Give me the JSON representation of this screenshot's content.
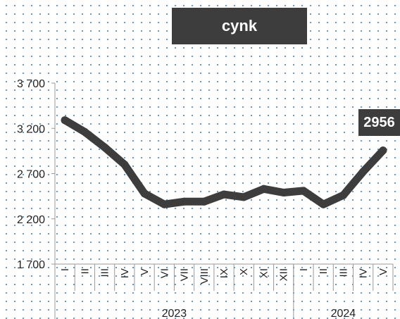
{
  "chart_data": {
    "type": "line",
    "title": "cynk",
    "x": [
      "I",
      "II",
      "III",
      "IV",
      "V",
      "VI",
      "VII",
      "VIII",
      "IX",
      "X",
      "XI",
      "XII",
      "I",
      "II",
      "III",
      "IV",
      "V"
    ],
    "groups": [
      {
        "label": "2023",
        "start": 0,
        "count": 12
      },
      {
        "label": "2024",
        "start": 12,
        "count": 5
      }
    ],
    "series": [
      {
        "values": [
          3290,
          3160,
          2990,
          2800,
          2480,
          2360,
          2390,
          2390,
          2470,
          2440,
          2530,
          2490,
          2510,
          2360,
          2460,
          2720,
          2956
        ]
      }
    ],
    "yticks": [
      1700,
      2200,
      2700,
      3200,
      3700
    ],
    "ytick_labels": [
      "1 700",
      "2 200",
      "2 700",
      "3 200",
      "3 700"
    ],
    "ylim": [
      1700,
      3700
    ],
    "last_label": "2956",
    "line_color": "#3d3d3d",
    "grid": false
  }
}
